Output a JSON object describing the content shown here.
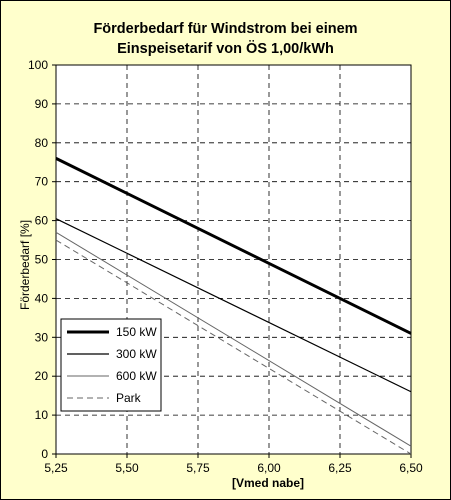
{
  "chart_data": {
    "type": "line",
    "title_line1": "Förderbedarf für Windstrom bei einem",
    "title_line2": "Einspeisetarif von ÖS 1,00/kWh",
    "xlabel": "[Vmed nabe]",
    "ylabel": "Förderbedarf [%]",
    "xlim": [
      5.25,
      6.5
    ],
    "ylim": [
      0,
      100
    ],
    "x_ticks": [
      5.25,
      5.5,
      5.75,
      6.0,
      6.25,
      6.5
    ],
    "x_tick_labels": [
      "5,25",
      "5,50",
      "5,75",
      "6,00",
      "6,25",
      "6,50"
    ],
    "y_ticks": [
      0,
      10,
      20,
      30,
      40,
      50,
      60,
      70,
      80,
      90,
      100
    ],
    "y_tick_labels": [
      "0",
      "10",
      "20",
      "30",
      "40",
      "50",
      "60",
      "70",
      "80",
      "90",
      "100"
    ],
    "grid": true,
    "legend_position": "bottom-left",
    "series": [
      {
        "name": "150 kW",
        "x": [
          5.25,
          6.5
        ],
        "y": [
          76,
          31
        ],
        "color": "#000000",
        "width": 3,
        "dash": ""
      },
      {
        "name": "300 kW",
        "x": [
          5.25,
          6.5
        ],
        "y": [
          60.5,
          16
        ],
        "color": "#000000",
        "width": 1.2,
        "dash": ""
      },
      {
        "name": "600 kW",
        "x": [
          5.25,
          6.5
        ],
        "y": [
          57,
          2
        ],
        "color": "#666666",
        "width": 1,
        "dash": ""
      },
      {
        "name": "Park",
        "x": [
          5.25,
          6.5
        ],
        "y": [
          55,
          0
        ],
        "color": "#666666",
        "width": 1,
        "dash": "6,4"
      }
    ]
  }
}
